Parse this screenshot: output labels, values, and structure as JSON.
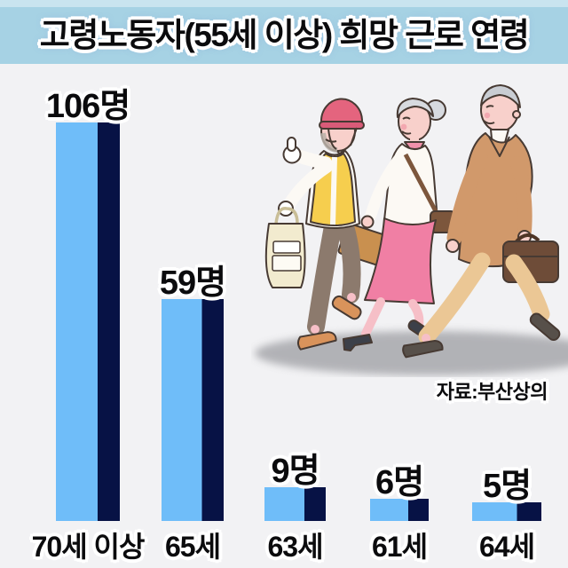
{
  "header": {
    "title": "고령노동자(55세 이상) 희망 근로 연령"
  },
  "source": {
    "label": "자료:부산상의"
  },
  "chart_data": {
    "type": "bar",
    "title": "고령노동자(55세 이상) 희망 근로 연령",
    "categories": [
      "70세 이상",
      "65세",
      "63세",
      "61세",
      "64세"
    ],
    "values": [
      106,
      59,
      9,
      6,
      5
    ],
    "unit": "명",
    "value_labels": [
      "106명",
      "59명",
      "9명",
      "6명",
      "5명"
    ],
    "xlabel": "",
    "ylabel": "",
    "ylim": [
      0,
      110
    ],
    "axes_hidden": true,
    "grid": false,
    "legend": "none",
    "data_labels_position": "above bars",
    "bar_style": "two-tone vertical split",
    "colors": {
      "bar_light": "#6FBDF9",
      "bar_dark": "#071245"
    }
  },
  "illustration": {
    "name": "elderly-workers-walking-illustration"
  },
  "colors": {
    "background": "#F2F2F4",
    "title_band": "#A6D2E4",
    "title_band_top": "#C9E4EF",
    "text": "#0B0B0D",
    "outline": "#FFFFFF",
    "ground_shadow": "#A2A3A7"
  }
}
